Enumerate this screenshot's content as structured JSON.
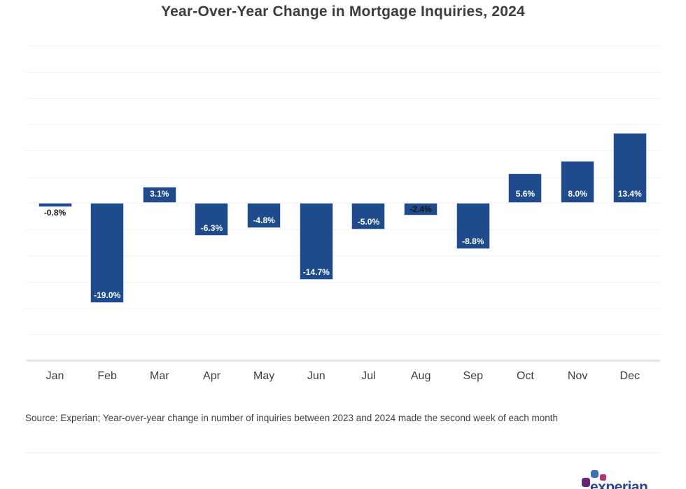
{
  "chart_data": {
    "type": "bar",
    "title": "Year-Over-Year Change in Mortgage Inquiries, 2024",
    "categories": [
      "Jan",
      "Feb",
      "Mar",
      "Apr",
      "May",
      "Jun",
      "Jul",
      "Aug",
      "Sep",
      "Oct",
      "Nov",
      "Dec"
    ],
    "values": [
      -0.8,
      -19.0,
      3.1,
      -6.3,
      -4.8,
      -14.7,
      -5.0,
      -2.4,
      -8.8,
      5.6,
      8.0,
      13.4
    ],
    "labels": [
      "-0.8%",
      "-19.0%",
      "3.1%",
      "-6.3%",
      "-4.8%",
      "-14.7%",
      "-5.0%",
      "-2.4%",
      "-8.8%",
      "5.6%",
      "8.0%",
      "13.4%"
    ],
    "xlabel": "",
    "ylabel": "",
    "ylim": [
      -30,
      30
    ],
    "gridline_step_pct": 5,
    "grid": "horizontal-only",
    "legend": "none",
    "axis_tick_labels_y": "none"
  },
  "footer": {
    "source_text": "Source: Experian; Year-over-year change in number of inquiries between 2023 and 2024 made the second week of each month",
    "logo_text": "experian"
  },
  "colors": {
    "bar_fill": "#1f4b8c",
    "bar_border": "#c5d4eb",
    "label_light": "#ffffff",
    "label_dark": "#161616",
    "grid": "#f3f3f3",
    "axis": "#e5e5e5",
    "divider": "#e9e9e9",
    "logo_text": "#26478d",
    "logo_purple": "#632678",
    "logo_blue": "#406eb3",
    "logo_magenta": "#ba2f7d"
  }
}
